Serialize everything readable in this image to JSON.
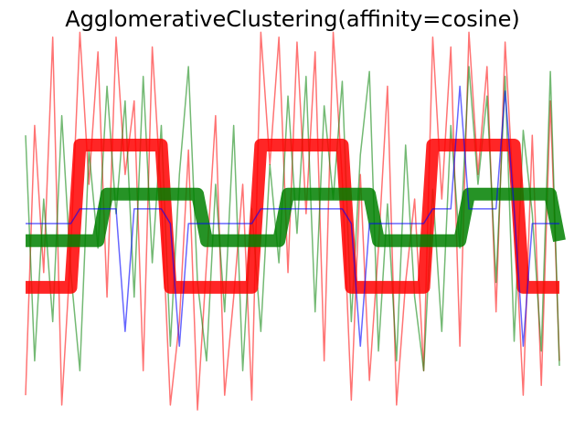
{
  "chart_data": {
    "type": "line",
    "title": "AgglomerativeClustering(affinity=cosine)",
    "x": [
      0,
      1,
      2,
      3,
      4,
      5,
      6,
      7,
      8,
      9,
      10,
      11,
      12,
      13,
      14,
      15,
      16,
      17,
      18,
      19,
      20,
      21,
      22,
      23,
      24,
      25,
      26,
      27,
      28,
      29,
      30,
      31,
      32,
      33,
      34,
      35,
      36,
      37,
      38,
      39,
      40,
      41,
      42,
      43,
      44,
      45,
      46,
      47,
      48,
      49,
      50,
      51,
      52,
      53,
      54,
      55,
      56,
      57,
      58,
      59
    ],
    "xlim": [
      0,
      59
    ],
    "ylim": [
      -4,
      4
    ],
    "axis": false,
    "grid": false,
    "series": [
      {
        "color": "red",
        "values": [
          -3.5,
          2.0,
          -1.0,
          3.8,
          -3.7,
          -0.5,
          3.9,
          0.8,
          3.5,
          -1.5,
          3.8,
          1.0,
          2.5,
          -3.0,
          3.6,
          0.5,
          -3.7,
          -2.0,
          1.5,
          -3.8,
          -0.8,
          2.2,
          -3.5,
          -1.5,
          0.8,
          -3.6,
          3.9,
          1.2,
          3.8,
          -1.0,
          3.7,
          0.2,
          3.5,
          -2.8,
          3.9,
          0.9,
          -3.6,
          1.0,
          -3.2,
          -0.5,
          2.8,
          -3.7,
          -1.2,
          0.5,
          -3.0,
          3.8,
          0.5,
          3.6,
          -2.5,
          3.9,
          1.0,
          3.2,
          -1.8,
          3.7,
          0.3,
          -3.5,
          1.8,
          -3.3,
          2.5,
          -2.8
        ]
      },
      {
        "color": "green",
        "values": [
          1.8,
          -2.8,
          0.5,
          -2.0,
          2.2,
          -1.0,
          -3.0,
          1.5,
          -0.5,
          2.8,
          0.2,
          2.5,
          -1.5,
          3.0,
          -0.8,
          2.0,
          -2.5,
          1.0,
          3.2,
          -1.2,
          -2.8,
          0.8,
          -1.8,
          2.0,
          -3.0,
          0.3,
          -2.2,
          1.2,
          -0.8,
          2.6,
          -0.2,
          3.0,
          -1.8,
          2.4,
          0.5,
          2.9,
          -2.0,
          1.4,
          3.1,
          -2.6,
          0.4,
          -2.8,
          1.6,
          -1.5,
          -3.0,
          0.7,
          -2.2,
          2.0,
          -0.5,
          3.2,
          0.8,
          2.6,
          -1.2,
          3.0,
          -2.4,
          1.9,
          0.2,
          -2.6,
          3.1,
          -2.9
        ]
      },
      {
        "color": "red",
        "values": [
          -1.3,
          -1.3,
          -1.3,
          -1.3,
          -1.3,
          -1.3,
          1.6,
          1.6,
          1.6,
          1.6,
          1.6,
          1.6,
          1.6,
          1.6,
          1.6,
          1.6,
          -1.3,
          -1.3,
          -1.3,
          -1.3,
          -1.3,
          -1.3,
          -1.3,
          -1.3,
          -1.3,
          -1.3,
          1.6,
          1.6,
          1.6,
          1.6,
          1.6,
          1.6,
          1.6,
          1.6,
          1.6,
          1.6,
          -1.3,
          -1.3,
          -1.3,
          -1.3,
          -1.3,
          -1.3,
          -1.3,
          -1.3,
          -1.3,
          1.6,
          1.6,
          1.6,
          1.6,
          1.6,
          1.6,
          1.6,
          1.6,
          1.6,
          1.6,
          -1.3,
          -1.3,
          -1.3,
          -1.3,
          -1.3
        ]
      },
      {
        "color": "green",
        "values": [
          -0.35,
          -0.35,
          -0.35,
          -0.35,
          -0.35,
          -0.35,
          -0.35,
          -0.35,
          -0.35,
          0.6,
          0.6,
          0.6,
          0.6,
          0.6,
          0.6,
          0.6,
          0.6,
          0.6,
          0.6,
          0.6,
          -0.35,
          -0.35,
          -0.35,
          -0.35,
          -0.35,
          -0.35,
          -0.35,
          -0.35,
          -0.35,
          0.6,
          0.6,
          0.6,
          0.6,
          0.6,
          0.6,
          0.6,
          0.6,
          0.6,
          0.6,
          -0.35,
          -0.35,
          -0.35,
          -0.35,
          -0.35,
          -0.35,
          -0.35,
          -0.35,
          -0.35,
          -0.35,
          0.6,
          0.6,
          0.6,
          0.6,
          0.6,
          0.6,
          0.6,
          0.6,
          0.6,
          0.6,
          -0.35
        ]
      },
      {
        "color": "blue",
        "values": [
          0,
          0,
          0,
          0,
          0,
          0,
          0.3,
          0.3,
          0.3,
          0.3,
          0.3,
          -2.2,
          0.3,
          0.3,
          0.3,
          0.3,
          0,
          -2.5,
          0,
          0,
          0,
          0,
          0,
          0,
          0,
          0,
          0.3,
          0.3,
          0.3,
          0.3,
          0.3,
          0.3,
          0.3,
          0.3,
          0.3,
          0.3,
          0,
          -2.5,
          0,
          0,
          0,
          0,
          0,
          0,
          0,
          0.3,
          0.3,
          0.3,
          2.8,
          0.3,
          0.3,
          0.3,
          0.3,
          2.7,
          0.3,
          -2.5,
          0,
          0,
          0,
          0
        ]
      }
    ]
  }
}
